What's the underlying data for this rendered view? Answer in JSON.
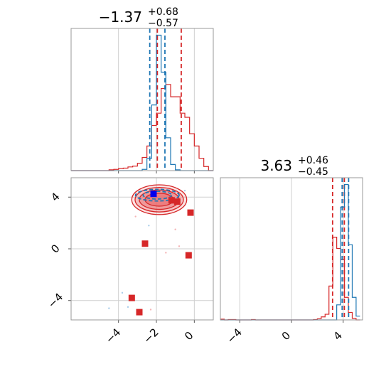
{
  "colors": {
    "red": "#d62728",
    "blue": "#1f77b4",
    "red_fill": "#e8686a",
    "red_light": "#f4b5b6",
    "blue_light": "#a9cdea"
  },
  "chart_data": [
    {
      "panel": "top-left",
      "type": "histogram",
      "title_main": "−1.37",
      "title_sup": "+0.68",
      "title_sub": "−0.57",
      "xlim": [
        -6.5,
        1.0
      ],
      "grid": true,
      "series": [
        {
          "color": "red",
          "bin_edges": [
            -6.5,
            -6.25,
            -6.0,
            -5.75,
            -5.5,
            -5.25,
            -5.0,
            -4.75,
            -4.5,
            -4.25,
            -4.0,
            -3.75,
            -3.5,
            -3.25,
            -3.0,
            -2.75,
            -2.5,
            -2.25,
            -2.0,
            -1.75,
            -1.5,
            -1.25,
            -1.0,
            -0.75,
            -0.5,
            -0.25,
            0.0,
            0.25,
            0.5,
            0.75,
            1.0
          ],
          "counts": [
            0,
            0,
            0,
            0,
            0,
            0,
            0,
            0,
            0.2,
            0.3,
            0.5,
            0.6,
            0.9,
            1.1,
            1.8,
            3.2,
            6,
            11,
            14,
            20,
            21,
            18,
            18,
            14,
            13,
            9,
            6,
            3,
            1,
            0
          ],
          "quantile_lines": [
            -1.95,
            -0.69
          ]
        },
        {
          "color": "blue",
          "bin_edges": [
            -6.5,
            -6.25,
            -6.0,
            -5.75,
            -5.5,
            -5.25,
            -5.0,
            -4.75,
            -4.5,
            -4.25,
            -4.0,
            -3.75,
            -3.5,
            -3.25,
            -3.0,
            -2.75,
            -2.5,
            -2.25,
            -2.0,
            -1.75,
            -1.5,
            -1.25,
            -1.0,
            -0.75,
            -0.5,
            -0.25,
            0.0,
            0.25,
            0.5,
            0.75,
            1.0
          ],
          "counts": [
            0,
            0,
            0,
            0,
            0,
            0,
            0,
            0,
            0,
            0,
            0,
            0,
            0,
            0,
            0,
            0.3,
            3,
            16,
            33,
            24,
            8,
            1.5,
            0.2,
            0,
            0,
            0,
            0,
            0,
            0,
            0
          ],
          "quantile_lines": [
            -2.35,
            -1.55
          ]
        }
      ]
    },
    {
      "panel": "bottom-left",
      "type": "scatter-contour",
      "xlim": [
        -6.5,
        1.0
      ],
      "ylim": [
        -5.5,
        5.5
      ],
      "xticks": [
        -4,
        -2,
        0
      ],
      "yticks": [
        -4,
        0,
        4
      ],
      "grid": true,
      "red_points": [
        {
          "x": -1.2,
          "y": 3.75
        },
        {
          "x": -0.9,
          "y": 3.65
        },
        {
          "x": -0.2,
          "y": 2.8
        },
        {
          "x": -2.6,
          "y": 0.4
        },
        {
          "x": -0.3,
          "y": -0.5
        },
        {
          "x": -3.3,
          "y": -3.8
        },
        {
          "x": -2.9,
          "y": -4.9
        }
      ],
      "blue_point": {
        "x": -2.15,
        "y": 4.25
      },
      "red_contours": [
        {
          "cx": -1.85,
          "cy": 3.8,
          "rx": 2.9,
          "ry": 1.15,
          "level": 0.3
        },
        {
          "cx": -1.85,
          "cy": 3.8,
          "rx": 2.55,
          "ry": 0.95,
          "level": 0.5
        },
        {
          "cx": -1.85,
          "cy": 3.8,
          "rx": 2.1,
          "ry": 0.75,
          "level": 0.7
        },
        {
          "cx": -1.85,
          "cy": 3.8,
          "rx": 1.5,
          "ry": 0.5,
          "level": 0.9
        }
      ],
      "blue_contours": [
        {
          "cx": -1.95,
          "cy": 4.15,
          "rx": 1.15,
          "ry": 0.45
        },
        {
          "cx": -1.95,
          "cy": 4.15,
          "rx": 0.75,
          "ry": 0.3
        }
      ]
    },
    {
      "panel": "bottom-right",
      "type": "histogram",
      "title_main": "3.63",
      "title_sup": "+0.46",
      "title_sub": "−0.45",
      "xlim": [
        -5.5,
        5.5
      ],
      "xticks": [
        -4,
        0,
        4
      ],
      "grid": true,
      "series": [
        {
          "color": "red",
          "bin_edges": [
            -5.5,
            -5.2,
            -4.9,
            -4.6,
            -4.3,
            -4.0,
            -3.7,
            -3.4,
            -3.1,
            -2.8,
            -2.5,
            -2.2,
            -1.9,
            -1.6,
            -1.3,
            -1.0,
            -0.7,
            -0.4,
            -0.1,
            0.2,
            0.5,
            0.8,
            1.1,
            1.4,
            1.7,
            2.0,
            2.3,
            2.6,
            2.9,
            3.2,
            3.5,
            3.8,
            4.1,
            4.4,
            4.7,
            5.0,
            5.3
          ],
          "counts": [
            0.2,
            0,
            0.1,
            0.1,
            0,
            0,
            0,
            0,
            0.1,
            0,
            0,
            0,
            0,
            0,
            0,
            0,
            0,
            0,
            0,
            0,
            0,
            0,
            0,
            0,
            0.1,
            0.3,
            0.8,
            1.5,
            9,
            22,
            19,
            16,
            6,
            2,
            0.4,
            0
          ],
          "quantile_lines": [
            3.18,
            4.09
          ]
        },
        {
          "color": "blue",
          "bin_edges": [
            -5.5,
            -5.2,
            -4.9,
            -4.6,
            -4.3,
            -4.0,
            -3.7,
            -3.4,
            -3.1,
            -2.8,
            -2.5,
            -2.2,
            -1.9,
            -1.6,
            -1.3,
            -1.0,
            -0.7,
            -0.4,
            -0.1,
            0.2,
            0.5,
            0.8,
            1.1,
            1.4,
            1.7,
            2.0,
            2.3,
            2.6,
            2.9,
            3.2,
            3.5,
            3.8,
            4.1,
            4.4,
            4.7,
            5.0,
            5.3
          ],
          "counts": [
            0,
            0,
            0,
            0,
            0,
            0,
            0,
            0,
            0,
            0,
            0,
            0,
            0,
            0,
            0,
            0,
            0,
            0,
            0,
            0,
            0,
            0,
            0,
            0,
            0,
            0,
            0,
            0,
            0,
            0,
            4,
            30,
            36,
            20,
            6,
            1
          ],
          "quantile_lines": [
            3.92,
            4.42
          ]
        }
      ]
    }
  ]
}
